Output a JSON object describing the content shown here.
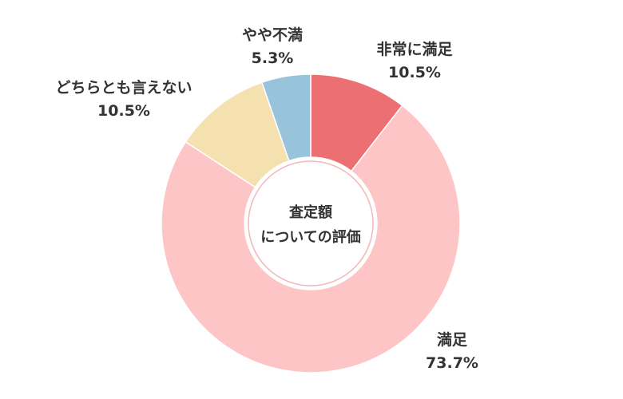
{
  "chart_data": {
    "type": "pie",
    "variant": "donut",
    "center_text": [
      "査定額",
      "についての評価"
    ],
    "slices": [
      {
        "label": "非常に満足",
        "value": 10.5,
        "display": "10.5%",
        "color": "#EC7071"
      },
      {
        "label": "満足",
        "value": 73.7,
        "display": "73.7%",
        "color": "#FDC5C6"
      },
      {
        "label": "どちらとも言えない",
        "value": 10.5,
        "display": "10.5%",
        "color": "#F5E1B0"
      },
      {
        "label": "やや不満",
        "value": 5.3,
        "display": "5.3%",
        "color": "#97C3DB"
      }
    ],
    "start_angle": "12 o'clock",
    "direction": "clockwise"
  },
  "colors": {
    "label_text": "#333333",
    "center_ring": "#F3B6B8"
  }
}
